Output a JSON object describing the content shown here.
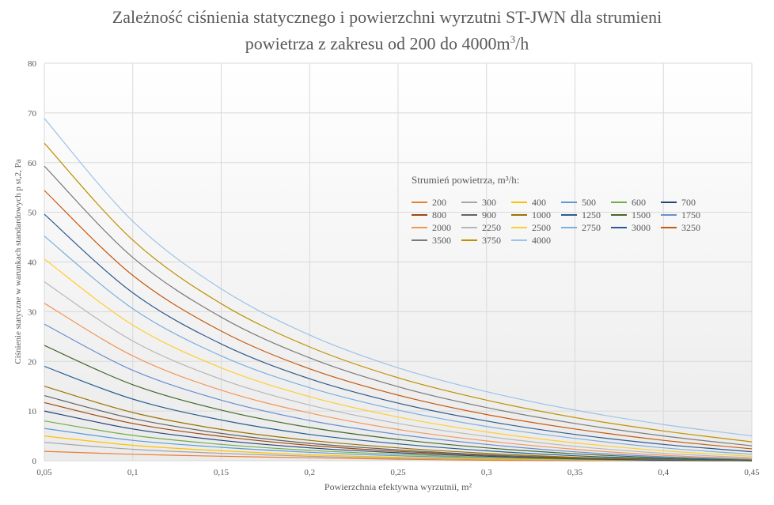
{
  "chart_data": {
    "type": "line",
    "title_line1": "Zależność ciśnienia statycznego i powierzchni wyrzutni ST-JWN dla strumieni",
    "title_line2_pre": "powietrza z zakresu od 200 do 4000m",
    "title_line2_sup": "3",
    "title_line2_post": "/h",
    "xlabel": "Powierzchnia efektywna wyrzutnii, m²",
    "ylabel": "Ciśnienie statyczne w warunkach standardowych p st,2, Pa",
    "xlim": [
      0.05,
      0.45
    ],
    "ylim": [
      0,
      80
    ],
    "x_ticks": [
      "0,05",
      "0,1",
      "0,15",
      "0,2",
      "0,25",
      "0,3",
      "0,35",
      "0,4",
      "0,45"
    ],
    "y_ticks": [
      "0",
      "10",
      "20",
      "30",
      "40",
      "50",
      "60",
      "70",
      "80"
    ],
    "grid": true,
    "legend_title": "Strumień powietrza, m³/h:",
    "legend_placement": "center-right",
    "x": [
      0.05,
      0.1,
      0.15,
      0.2,
      0.25,
      0.3,
      0.35,
      0.4,
      0.45
    ],
    "series": [
      {
        "name": "200",
        "color": "#ed7d31",
        "values": [
          1.9,
          1.3,
          0.9,
          0.6,
          0.3,
          0.1,
          0.0,
          0.0,
          0.0
        ]
      },
      {
        "name": "300",
        "color": "#a5a5a5",
        "values": [
          3.7,
          2.3,
          1.5,
          0.9,
          0.5,
          0.3,
          0.1,
          0.0,
          0.0
        ]
      },
      {
        "name": "400",
        "color": "#ffc000",
        "values": [
          5.0,
          3.1,
          2.0,
          1.2,
          0.7,
          0.4,
          0.2,
          0.1,
          0.0
        ]
      },
      {
        "name": "500",
        "color": "#5b9bd5",
        "values": [
          6.5,
          4.1,
          2.7,
          1.7,
          1.0,
          0.6,
          0.3,
          0.1,
          0.0
        ]
      },
      {
        "name": "600",
        "color": "#70ad47",
        "values": [
          8.0,
          5.1,
          3.3,
          2.1,
          1.3,
          0.7,
          0.3,
          0.1,
          0.0
        ]
      },
      {
        "name": "700",
        "color": "#264478",
        "values": [
          10.0,
          6.4,
          4.1,
          2.6,
          1.6,
          0.9,
          0.4,
          0.1,
          0.0
        ]
      },
      {
        "name": "800",
        "color": "#9e480e",
        "values": [
          11.7,
          7.5,
          4.9,
          3.1,
          1.9,
          1.1,
          0.5,
          0.2,
          0.0
        ]
      },
      {
        "name": "900",
        "color": "#636363",
        "values": [
          13.1,
          8.5,
          5.5,
          3.5,
          2.2,
          1.2,
          0.6,
          0.2,
          0.0
        ]
      },
      {
        "name": "1000",
        "color": "#997300",
        "values": [
          15.0,
          9.7,
          6.3,
          4.1,
          2.6,
          1.5,
          0.7,
          0.3,
          0.0
        ]
      },
      {
        "name": "1250",
        "color": "#255e91",
        "values": [
          19.0,
          12.4,
          8.2,
          5.3,
          3.4,
          2.0,
          1.0,
          0.4,
          0.1
        ]
      },
      {
        "name": "1500",
        "color": "#43682b",
        "values": [
          23.2,
          15.3,
          10.2,
          6.7,
          4.3,
          2.6,
          1.4,
          0.6,
          0.2
        ]
      },
      {
        "name": "1750",
        "color": "#698ed0",
        "values": [
          27.5,
          18.2,
          12.2,
          8.1,
          5.3,
          3.3,
          1.8,
          0.8,
          0.3
        ]
      },
      {
        "name": "2000",
        "color": "#f1975a",
        "values": [
          31.7,
          21.1,
          14.2,
          9.6,
          6.3,
          4.0,
          2.3,
          1.1,
          0.4
        ]
      },
      {
        "name": "2250",
        "color": "#b7b7b7",
        "values": [
          36.0,
          24.1,
          16.4,
          11.2,
          7.5,
          4.9,
          2.9,
          1.5,
          0.6
        ]
      },
      {
        "name": "2500",
        "color": "#ffcd33",
        "values": [
          40.6,
          27.3,
          18.7,
          12.9,
          8.8,
          5.8,
          3.6,
          2.0,
          0.9
        ]
      },
      {
        "name": "2750",
        "color": "#7cafdd",
        "values": [
          45.2,
          30.6,
          21.1,
          14.7,
          10.2,
          6.9,
          4.5,
          2.6,
          1.3
        ]
      },
      {
        "name": "3000",
        "color": "#2e5a8e",
        "values": [
          49.6,
          33.8,
          23.5,
          16.5,
          11.6,
          8.0,
          5.3,
          3.3,
          1.8
        ]
      },
      {
        "name": "3250",
        "color": "#c55a11",
        "values": [
          54.4,
          37.3,
          26.1,
          18.5,
          13.2,
          9.3,
          6.4,
          4.1,
          2.4
        ]
      },
      {
        "name": "3500",
        "color": "#7b7b7b",
        "values": [
          59.3,
          40.9,
          28.9,
          20.7,
          14.9,
          10.7,
          7.5,
          5.0,
          3.0
        ]
      },
      {
        "name": "3750",
        "color": "#bf9000",
        "values": [
          63.9,
          44.4,
          31.6,
          22.9,
          16.7,
          12.2,
          8.7,
          6.0,
          3.8
        ]
      },
      {
        "name": "4000",
        "color": "#9dc3e6",
        "values": [
          68.9,
          48.2,
          34.6,
          25.3,
          18.7,
          13.9,
          10.2,
          7.3,
          5.0
        ]
      }
    ]
  }
}
